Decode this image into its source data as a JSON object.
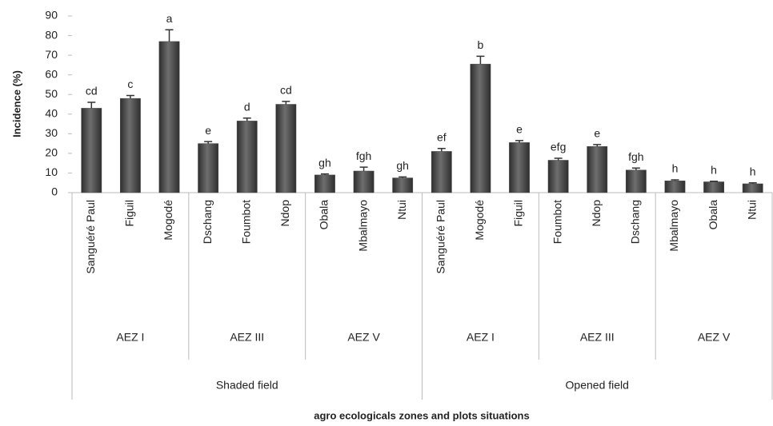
{
  "chart_data": {
    "type": "bar",
    "y_label": "Incidence (%)",
    "x_label": "agro ecologicals zones and plots situations",
    "categories": [
      "Sanguéré Paul",
      "Figuil",
      "Mogodé",
      "Dschang",
      "Foumbot",
      "Ndop",
      "Obala",
      "Mbalmayo",
      "Ntui",
      "Sanguéré Paul",
      "Mogodé",
      "Figuil",
      "Foumbot",
      "Ndop",
      "Dschang",
      "Mbalmayo",
      "Obala",
      "Ntui"
    ],
    "values": [
      43,
      48,
      77,
      25,
      36.5,
      45,
      9,
      11,
      7.5,
      21,
      65.5,
      25.5,
      16.5,
      23.5,
      11.5,
      6,
      5.5,
      4.5
    ],
    "errors": [
      3,
      1.5,
      6,
      1,
      1.5,
      1.5,
      0.5,
      2,
      0.5,
      1.5,
      4,
      1,
      1,
      1,
      1,
      0.5,
      0.3,
      0.5
    ],
    "annotations": [
      "cd",
      "c",
      "a",
      "e",
      "d",
      "cd",
      "gh",
      "fgh",
      "gh",
      "ef",
      "b",
      "e",
      "efg",
      "e",
      "fgh",
      "h",
      "h",
      "h"
    ],
    "zones": [
      "AEZ I",
      "AEZ III",
      "AEZ V",
      "AEZ I",
      "AEZ III",
      "AEZ V"
    ],
    "situations": [
      "Shaded field",
      "Opened field"
    ],
    "color": "#4a4a4a",
    "ylim": [
      0,
      90
    ],
    "yticks": [
      0,
      10,
      20,
      30,
      40,
      50,
      60,
      70,
      80,
      90
    ]
  }
}
